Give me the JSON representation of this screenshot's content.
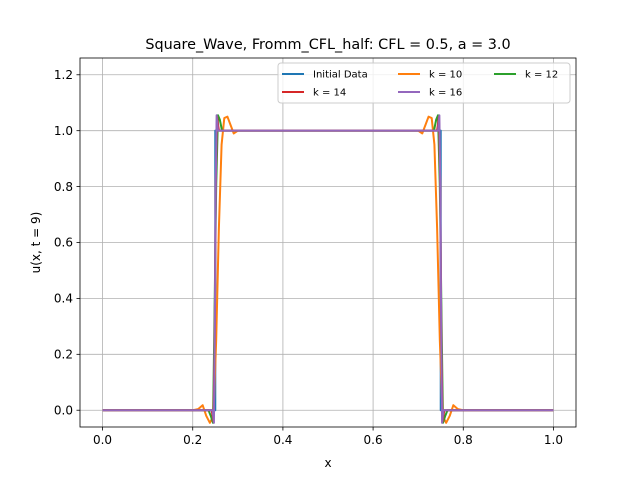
{
  "chart_data": {
    "type": "line",
    "title": "Square_Wave, Fromm_CFL_half: CFL = 0.5, a = 3.0",
    "xlabel": "x",
    "ylabel": "u(x, t = 9)",
    "xlim": [
      -0.05,
      1.05
    ],
    "ylim": [
      -0.06,
      1.26
    ],
    "xticks": [
      0.0,
      0.2,
      0.4,
      0.6,
      0.8,
      1.0
    ],
    "yticks": [
      0.0,
      0.2,
      0.4,
      0.6,
      0.8,
      1.0,
      1.2
    ],
    "xtick_labels": [
      "0.0",
      "0.2",
      "0.4",
      "0.6",
      "0.8",
      "1.0"
    ],
    "ytick_labels": [
      "0.0",
      "0.2",
      "0.4",
      "0.6",
      "0.8",
      "1.0",
      "1.2"
    ],
    "grid": true,
    "legend_position": "top-right",
    "legend_columns": 3,
    "series": [
      {
        "name": "Initial Data",
        "color": "#1f77b4",
        "x": [
          0.0,
          0.25,
          0.25,
          0.75,
          0.75,
          1.0
        ],
        "y": [
          0.0,
          0.0,
          1.0,
          1.0,
          0.0,
          0.0
        ]
      },
      {
        "name": "k = 10",
        "color": "#ff7f0e",
        "x": [
          0.0,
          0.2,
          0.212,
          0.222,
          0.23,
          0.238,
          0.246,
          0.252,
          0.258,
          0.264,
          0.27,
          0.277,
          0.284,
          0.291,
          0.3,
          0.7,
          0.709,
          0.716,
          0.723,
          0.73,
          0.736,
          0.742,
          0.748,
          0.754,
          0.762,
          0.77,
          0.778,
          0.788,
          0.8,
          1.0
        ],
        "y": [
          0.0,
          0.0,
          0.004,
          0.018,
          -0.02,
          -0.045,
          -0.02,
          0.25,
          0.65,
          0.95,
          1.045,
          1.05,
          1.02,
          0.99,
          1.0,
          1.0,
          0.99,
          1.02,
          1.05,
          1.045,
          0.95,
          0.65,
          0.25,
          -0.02,
          -0.045,
          -0.02,
          0.018,
          0.004,
          0.0,
          0.0
        ]
      },
      {
        "name": "k = 12",
        "color": "#2ca02c",
        "x": [
          0.0,
          0.235,
          0.24,
          0.245,
          0.248,
          0.252,
          0.256,
          0.26,
          0.265,
          0.27,
          0.73,
          0.735,
          0.74,
          0.744,
          0.748,
          0.752,
          0.755,
          0.76,
          0.765,
          1.0
        ],
        "y": [
          0.0,
          0.0,
          -0.02,
          -0.045,
          0.3,
          0.8,
          1.055,
          1.04,
          1.0,
          1.0,
          1.0,
          1.0,
          1.04,
          1.055,
          0.8,
          0.3,
          -0.045,
          -0.02,
          0.0,
          0.0
        ]
      },
      {
        "name": "k = 14",
        "color": "#d62728",
        "x": [
          0.0,
          0.242,
          0.246,
          0.249,
          0.251,
          0.254,
          0.258,
          0.742,
          0.746,
          0.749,
          0.751,
          0.754,
          0.758,
          1.0
        ],
        "y": [
          0.0,
          0.0,
          -0.04,
          0.3,
          0.8,
          1.05,
          1.0,
          1.0,
          1.05,
          0.8,
          0.3,
          -0.04,
          0.0,
          0.0
        ]
      },
      {
        "name": "k = 16",
        "color": "#9467bd",
        "x": [
          0.0,
          0.244,
          0.247,
          0.249,
          0.251,
          0.253,
          0.256,
          0.744,
          0.747,
          0.749,
          0.751,
          0.753,
          0.756,
          1.0
        ],
        "y": [
          0.0,
          0.0,
          -0.045,
          0.3,
          0.8,
          1.055,
          1.0,
          1.0,
          1.055,
          0.8,
          0.3,
          -0.045,
          0.0,
          0.0
        ]
      }
    ]
  }
}
